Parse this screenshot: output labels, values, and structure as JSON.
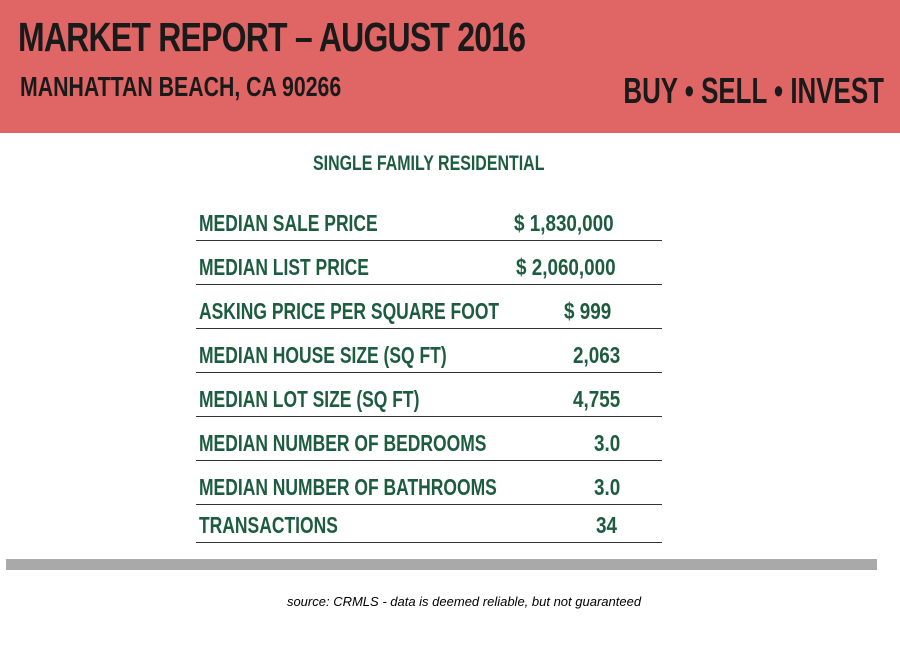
{
  "header": {
    "title": "MARKET REPORT – AUGUST  2016",
    "location": "MANHATTAN BEACH, CA 90266",
    "tagline": "BUY • SELL • INVEST"
  },
  "section_heading": "SINGLE FAMILY RESIDENTIAL",
  "stats": [
    {
      "label": "MEDIAN SALE PRICE",
      "value": "$ 1,830,000"
    },
    {
      "label": "MEDIAN LIST PRICE",
      "value": "$ 2,060,000"
    },
    {
      "label": "ASKING PRICE PER SQUARE FOOT",
      "value": "$ 999"
    },
    {
      "label": "MEDIAN HOUSE SIZE (SQ FT)",
      "value": "2,063"
    },
    {
      "label": "MEDIAN LOT SIZE (SQ FT)",
      "value": "4,755"
    },
    {
      "label": "MEDIAN NUMBER OF BEDROOMS",
      "value": "3.0"
    },
    {
      "label": "MEDIAN NUMBER OF BATHROOMS",
      "value": "3.0"
    },
    {
      "label": "TRANSACTIONS",
      "value": "34"
    }
  ],
  "source_note": "source:  CRMLS - data is deemed reliable, but not guaranteed",
  "colors": {
    "banner": "#e06666",
    "heading_text": "#1a1a1a",
    "table_text": "#1d5c3f",
    "divider": "#a9a9a9"
  }
}
